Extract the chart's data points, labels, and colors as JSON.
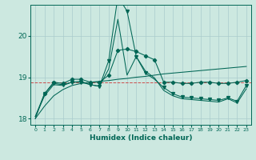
{
  "xlabel": "Humidex (Indice chaleur)",
  "bg_color": "#cce8e0",
  "grid_color": "#aacccc",
  "line_color": "#006655",
  "red_line_color": "#cc3333",
  "ylim": [
    17.85,
    20.75
  ],
  "xlim": [
    -0.5,
    23.5
  ],
  "yticks": [
    18,
    19,
    20
  ],
  "xticks": [
    0,
    1,
    2,
    3,
    4,
    5,
    6,
    7,
    8,
    9,
    10,
    11,
    12,
    13,
    14,
    15,
    16,
    17,
    18,
    19,
    20,
    21,
    22,
    23
  ],
  "ref_y": 18.88,
  "series_diagonal": [
    18.0,
    18.3,
    18.55,
    18.7,
    18.8,
    18.85,
    18.88,
    18.9,
    18.92,
    18.95,
    18.97,
    19.0,
    19.02,
    19.05,
    19.08,
    19.1,
    19.12,
    19.14,
    19.16,
    19.18,
    19.2,
    19.22,
    19.24,
    19.26
  ],
  "series_spike": [
    18.05,
    18.6,
    18.85,
    18.82,
    18.88,
    18.88,
    18.82,
    18.78,
    19.4,
    20.95,
    20.6,
    19.5,
    19.1,
    18.95,
    18.75,
    18.6,
    18.52,
    18.5,
    18.48,
    18.46,
    18.44,
    18.5,
    18.42,
    18.8
  ],
  "series_spike2": [
    18.05,
    18.55,
    18.82,
    18.8,
    18.88,
    18.9,
    18.82,
    18.78,
    19.2,
    20.4,
    19.05,
    19.5,
    19.15,
    18.98,
    18.68,
    18.55,
    18.48,
    18.46,
    18.44,
    18.42,
    18.4,
    18.48,
    18.38,
    18.72
  ],
  "series_upper": [
    18.0,
    18.6,
    18.88,
    18.85,
    18.95,
    18.95,
    18.88,
    18.88,
    19.05,
    19.65,
    19.68,
    19.62,
    19.52,
    19.42,
    18.88,
    18.88,
    18.85,
    18.85,
    18.88,
    18.88,
    18.85,
    18.85,
    18.88,
    18.92
  ],
  "markers_diamond_x": [
    1,
    2,
    3,
    4,
    5,
    6,
    7,
    8,
    9,
    10,
    11,
    12,
    13,
    14,
    15,
    16,
    17,
    18,
    19,
    20,
    21,
    22,
    23
  ],
  "markers_diamond_y": [
    18.6,
    18.88,
    18.85,
    18.95,
    18.95,
    18.88,
    18.88,
    19.05,
    19.65,
    19.68,
    19.62,
    19.52,
    19.42,
    18.88,
    18.88,
    18.85,
    18.85,
    18.88,
    18.88,
    18.85,
    18.85,
    18.88,
    18.92
  ],
  "markers_tri_x": [
    1,
    2,
    3,
    4,
    5,
    6,
    7,
    8,
    9,
    10,
    11,
    12,
    14,
    15,
    16,
    17,
    18,
    19,
    20,
    21,
    22,
    23
  ],
  "markers_tri_y": [
    18.6,
    18.85,
    18.82,
    18.88,
    18.88,
    18.82,
    18.78,
    19.4,
    20.95,
    20.6,
    19.5,
    19.1,
    18.75,
    18.6,
    18.52,
    18.5,
    18.48,
    18.46,
    18.44,
    18.5,
    18.42,
    18.8
  ]
}
